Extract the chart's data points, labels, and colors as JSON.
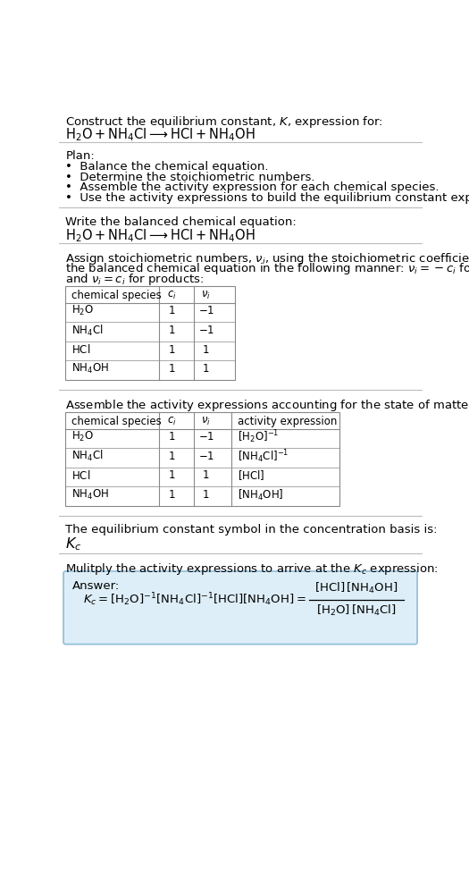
{
  "title_line1": "Construct the equilibrium constant, $K$, expression for:",
  "title_line2": "$\\mathrm{H_2O + NH_4Cl \\longrightarrow HCl + NH_4OH}$",
  "plan_header": "Plan:",
  "plan_items": [
    "•  Balance the chemical equation.",
    "•  Determine the stoichiometric numbers.",
    "•  Assemble the activity expression for each chemical species.",
    "•  Use the activity expressions to build the equilibrium constant expression."
  ],
  "section2_header": "Write the balanced chemical equation:",
  "section2_eq": "$\\mathrm{H_2O + NH_4Cl \\longrightarrow HCl + NH_4OH}$",
  "section3_text1": "Assign stoichiometric numbers, $\\nu_i$, using the stoichiometric coefficients, $c_i$, from",
  "section3_text2": "the balanced chemical equation in the following manner: $\\nu_i = -c_i$ for reactants",
  "section3_text3": "and $\\nu_i = c_i$ for products:",
  "table1_headers": [
    "chemical species",
    "$c_i$",
    "$\\nu_i$"
  ],
  "table1_rows": [
    [
      "$\\mathrm{H_2O}$",
      "1",
      "$-1$"
    ],
    [
      "$\\mathrm{NH_4Cl}$",
      "1",
      "$-1$"
    ],
    [
      "$\\mathrm{HCl}$",
      "1",
      "1"
    ],
    [
      "$\\mathrm{NH_4OH}$",
      "1",
      "1"
    ]
  ],
  "section4_header": "Assemble the activity expressions accounting for the state of matter and $\\nu_i$:",
  "table2_headers": [
    "chemical species",
    "$c_i$",
    "$\\nu_i$",
    "activity expression"
  ],
  "table2_rows": [
    [
      "$\\mathrm{H_2O}$",
      "1",
      "$-1$",
      "$[\\mathrm{H_2O}]^{-1}$"
    ],
    [
      "$\\mathrm{NH_4Cl}$",
      "1",
      "$-1$",
      "$[\\mathrm{NH_4Cl}]^{-1}$"
    ],
    [
      "$\\mathrm{HCl}$",
      "1",
      "1",
      "$[\\mathrm{HCl}]$"
    ],
    [
      "$\\mathrm{NH_4OH}$",
      "1",
      "1",
      "$[\\mathrm{NH_4OH}]$"
    ]
  ],
  "section5_line1": "The equilibrium constant symbol in the concentration basis is:",
  "section5_line2": "$K_c$",
  "section6_header": "Mulitply the activity expressions to arrive at the $K_c$ expression:",
  "answer_label": "Answer:",
  "bg_color": "#ffffff",
  "answer_bg_color": "#deeef8",
  "answer_border_color": "#90bcd8",
  "table_border_color": "#888888",
  "separator_color": "#bbbbbb",
  "text_color": "#000000",
  "font_size": 9.5,
  "font_size_small": 8.5,
  "font_size_eq": 10.5
}
